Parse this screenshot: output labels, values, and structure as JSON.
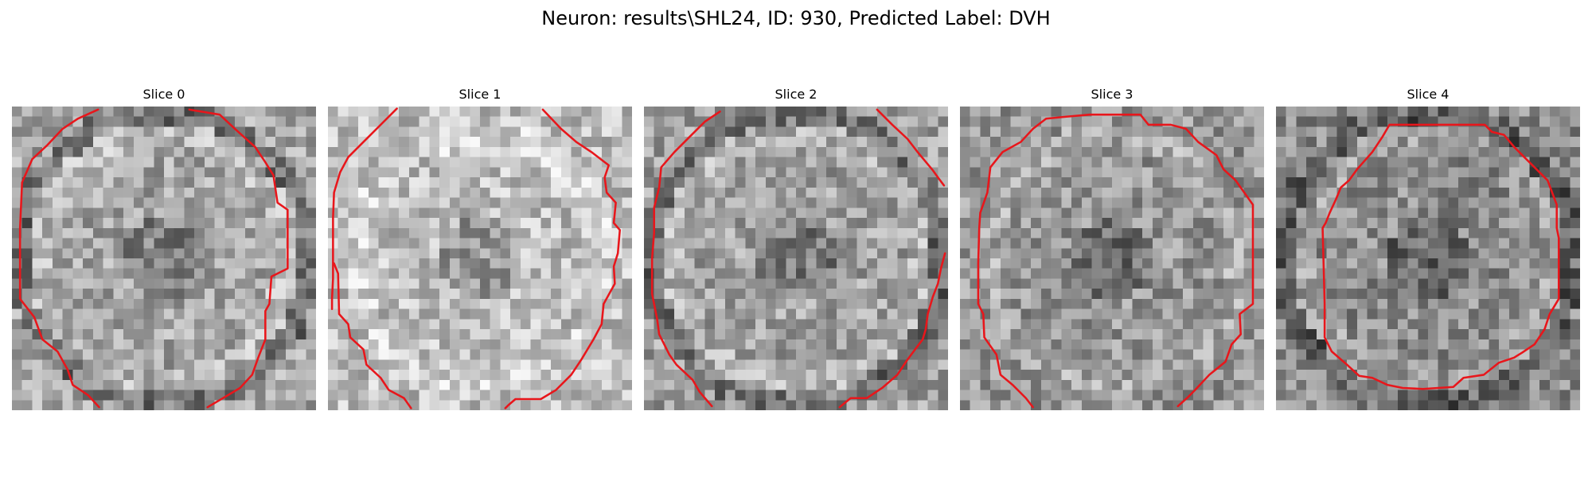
{
  "figure": {
    "title": "Neuron: results\\SHL24, ID: 930, Predicted Label: DVH"
  },
  "colors": {
    "contour": "#e8161b",
    "background": "#ffffff"
  },
  "image": {
    "colormap": "grayscale",
    "grid_size": 30
  },
  "slices": [
    {
      "title": "Slice 0",
      "seed": 17,
      "base_gray": 165,
      "dark_rim": true,
      "contour": [
        {
          "points": [
            [
              8.5,
              0.3
            ],
            [
              6.5,
              1.2
            ],
            [
              5,
              2.2
            ],
            [
              3.5,
              3.8
            ],
            [
              2,
              5.2
            ],
            [
              1,
              7.5
            ],
            [
              0.8,
              12
            ],
            [
              0.8,
              17
            ],
            [
              0.8,
              19
            ],
            [
              2.2,
              20.8
            ],
            [
              3,
              23
            ],
            [
              4.5,
              24.2
            ],
            [
              5.5,
              26
            ],
            [
              6,
              27.5
            ],
            [
              7.5,
              28.5
            ],
            [
              8.6,
              29.7
            ]
          ]
        },
        {
          "points": [
            [
              17.5,
              0.3
            ],
            [
              20.5,
              0.8
            ],
            [
              22,
              2.2
            ],
            [
              24,
              4
            ],
            [
              25,
              5.5
            ],
            [
              25.8,
              6.8
            ],
            [
              26.2,
              9.5
            ],
            [
              27.2,
              10.2
            ],
            [
              27.2,
              16
            ],
            [
              25.6,
              16.8
            ],
            [
              25.4,
              19.5
            ],
            [
              25,
              20.2
            ],
            [
              25,
              23
            ],
            [
              24.3,
              24.8
            ],
            [
              23.7,
              26.5
            ],
            [
              22.5,
              27.8
            ],
            [
              21,
              28.7
            ],
            [
              19.3,
              29.7
            ]
          ]
        }
      ]
    },
    {
      "title": "Slice 1",
      "seed": 29,
      "base_gray": 190,
      "dark_rim": false,
      "contour": [
        {
          "points": [
            [
              6.8,
              0.2
            ],
            [
              5,
              2
            ],
            [
              3.5,
              3.5
            ],
            [
              2,
              5
            ],
            [
              1.2,
              6.5
            ],
            [
              0.6,
              8.5
            ],
            [
              0.5,
              11
            ],
            [
              0.5,
              14.5
            ],
            [
              0.5,
              17
            ],
            [
              0.4,
              19
            ],
            [
              0.4,
              20
            ]
          ]
        },
        {
          "points": [
            [
              21.2,
              0.3
            ],
            [
              23,
              2.2
            ],
            [
              24.5,
              3.5
            ],
            [
              26,
              4.5
            ],
            [
              27.7,
              5.8
            ],
            [
              27.3,
              7
            ],
            [
              27.5,
              8.5
            ],
            [
              28.4,
              9.5
            ],
            [
              28.2,
              11.5
            ],
            [
              28.8,
              12.2
            ],
            [
              28.6,
              14.5
            ],
            [
              28.2,
              15.8
            ],
            [
              28.3,
              17.5
            ],
            [
              27.2,
              19.5
            ],
            [
              27,
              21.5
            ],
            [
              26.2,
              23
            ],
            [
              25,
              25
            ],
            [
              24,
              26.5
            ],
            [
              22.5,
              28
            ],
            [
              21,
              28.9
            ],
            [
              18.5,
              28.9
            ],
            [
              17.8,
              29.5
            ],
            [
              17.5,
              29.8
            ]
          ]
        },
        {
          "points": [
            [
              0.6,
              15.5
            ],
            [
              1,
              16.5
            ],
            [
              1.1,
              20.5
            ],
            [
              2,
              21.5
            ],
            [
              2.2,
              22.8
            ],
            [
              3.5,
              24
            ],
            [
              3.8,
              25.5
            ],
            [
              5.2,
              26.8
            ],
            [
              6,
              28
            ],
            [
              7.5,
              28.8
            ],
            [
              8.2,
              29.8
            ]
          ]
        }
      ]
    },
    {
      "title": "Slice 2",
      "seed": 43,
      "base_gray": 160,
      "dark_rim": true,
      "contour": [
        {
          "points": [
            [
              7.5,
              0.5
            ],
            [
              6,
              1.5
            ],
            [
              4.5,
              3
            ],
            [
              3,
              4.5
            ],
            [
              1.7,
              6
            ],
            [
              1.5,
              8
            ],
            [
              1,
              10
            ],
            [
              1,
              12.5
            ],
            [
              0.8,
              15
            ],
            [
              0.8,
              18.5
            ],
            [
              1.3,
              21
            ],
            [
              1.5,
              22.5
            ],
            [
              2.5,
              24.5
            ],
            [
              3.2,
              25.5
            ],
            [
              4.8,
              27
            ],
            [
              5.5,
              28.2
            ],
            [
              6.7,
              29.6
            ]
          ]
        },
        {
          "points": [
            [
              23,
              0.3
            ],
            [
              24.5,
              1.8
            ],
            [
              26,
              3.2
            ],
            [
              27,
              4.5
            ],
            [
              28.5,
              6.3
            ],
            [
              29,
              7
            ],
            [
              29.6,
              7.8
            ]
          ]
        },
        {
          "points": [
            [
              29.7,
              14.5
            ],
            [
              29.3,
              16
            ],
            [
              29,
              17.5
            ],
            [
              28.5,
              18.8
            ],
            [
              28,
              20.5
            ],
            [
              27.8,
              22
            ],
            [
              27.5,
              23
            ],
            [
              26,
              25
            ],
            [
              25,
              26.5
            ],
            [
              23.5,
              27.8
            ],
            [
              22,
              28.8
            ],
            [
              20.4,
              28.8
            ],
            [
              19.3,
              29.7
            ]
          ]
        }
      ]
    },
    {
      "title": "Slice 3",
      "seed": 61,
      "base_gray": 150,
      "dark_rim": false,
      "contour": [
        {
          "points": [
            [
              7.2,
              2.2
            ],
            [
              8.5,
              1.2
            ],
            [
              10.5,
              1
            ],
            [
              12.8,
              0.8
            ],
            [
              17.8,
              0.8
            ],
            [
              18.6,
              1.8
            ],
            [
              20.8,
              1.8
            ],
            [
              22.3,
              2.2
            ],
            [
              23.5,
              3.5
            ],
            [
              25.3,
              4.8
            ],
            [
              26,
              6.2
            ],
            [
              27.2,
              7.3
            ],
            [
              28.9,
              9.7
            ],
            [
              28.9,
              17.5
            ],
            [
              28.9,
              19.5
            ],
            [
              27.6,
              20.5
            ],
            [
              27.7,
              22.5
            ],
            [
              26.8,
              23.5
            ],
            [
              26.2,
              25.2
            ],
            [
              24.6,
              26.5
            ],
            [
              23.2,
              28
            ],
            [
              22.4,
              28.8
            ],
            [
              21.5,
              29.6
            ]
          ]
        },
        {
          "points": [
            [
              7.2,
              2.2
            ],
            [
              6,
              3.5
            ],
            [
              4.2,
              4.5
            ],
            [
              3,
              6
            ],
            [
              2.7,
              8.5
            ],
            [
              2,
              10.5
            ],
            [
              1.9,
              12
            ],
            [
              1.8,
              15.5
            ],
            [
              1.8,
              19.5
            ],
            [
              2.3,
              20.5
            ],
            [
              2.4,
              22.8
            ],
            [
              3.6,
              24.5
            ],
            [
              4,
              26.5
            ],
            [
              5.2,
              27.5
            ],
            [
              6.5,
              28.8
            ],
            [
              7.2,
              29.7
            ]
          ]
        }
      ]
    },
    {
      "title": "Slice 4",
      "seed": 83,
      "base_gray": 140,
      "dark_rim": true,
      "contour": [
        {
          "points": [
            [
              11.2,
              1.8
            ],
            [
              13,
              1.8
            ],
            [
              20.6,
              1.8
            ],
            [
              21.3,
              2.5
            ],
            [
              22.5,
              2.8
            ],
            [
              23.5,
              4
            ],
            [
              24.5,
              5
            ],
            [
              25.5,
              6
            ],
            [
              26.8,
              7.3
            ],
            [
              27.7,
              9.7
            ],
            [
              27.7,
              12
            ],
            [
              27.9,
              13
            ],
            [
              27.9,
              19
            ],
            [
              27,
              20.5
            ],
            [
              26.5,
              22
            ],
            [
              25.5,
              23.5
            ],
            [
              24.3,
              24.3
            ],
            [
              23.5,
              24.8
            ],
            [
              22,
              25.3
            ],
            [
              20.5,
              26.5
            ],
            [
              18.5,
              26.8
            ],
            [
              17.5,
              27.7
            ],
            [
              14.5,
              27.9
            ],
            [
              12.5,
              27.8
            ],
            [
              11,
              27.5
            ],
            [
              9.5,
              26.8
            ],
            [
              8.2,
              26.6
            ],
            [
              7,
              25.5
            ],
            [
              5.5,
              24.2
            ],
            [
              4.8,
              22.8
            ],
            [
              4.8,
              19.5
            ],
            [
              4.6,
              12
            ],
            [
              4.9,
              11.5
            ],
            [
              5.3,
              10.5
            ],
            [
              5.9,
              9.2
            ],
            [
              6.4,
              8
            ],
            [
              7.2,
              7.3
            ],
            [
              8,
              6.2
            ],
            [
              9.5,
              4.5
            ],
            [
              10.5,
              3
            ],
            [
              11.2,
              1.8
            ]
          ]
        }
      ]
    }
  ]
}
